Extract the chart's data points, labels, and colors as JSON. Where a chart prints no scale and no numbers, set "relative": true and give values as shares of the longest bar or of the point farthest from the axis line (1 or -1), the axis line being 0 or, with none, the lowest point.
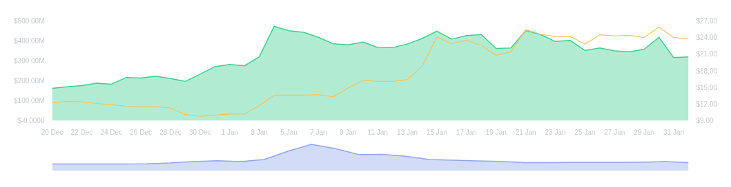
{
  "chart_data": [
    {
      "type": "area",
      "categories": [
        "20 Dec",
        null,
        "22 Dec",
        null,
        "24 Dec",
        null,
        "26 Dec",
        null,
        "28 Dec",
        null,
        "30 Dec",
        null,
        "1 Jan",
        null,
        "3 Jan",
        null,
        "5 Jan",
        null,
        "7 Jan",
        null,
        "9 Jan",
        null,
        "11 Jan",
        null,
        "13 Jan",
        null,
        "15 Jan",
        null,
        "17 Jan",
        null,
        "19 Jan",
        null,
        "21 Jan",
        null,
        "23 Jan",
        null,
        "25 Jan",
        null,
        "27 Jan",
        null,
        "29 Jan",
        null,
        "31 Jan",
        null
      ],
      "series": [
        {
          "type": "area",
          "color": "#3dcf8e",
          "values": [
            162,
            170,
            176,
            188,
            183,
            216,
            214,
            223,
            211,
            197,
            233,
            271,
            282,
            275,
            320,
            473,
            451,
            443,
            418,
            385,
            380,
            394,
            367,
            366,
            384,
            412,
            449,
            409,
            427,
            432,
            362,
            365,
            452,
            432,
            397,
            403,
            352,
            365,
            350,
            346,
            358,
            418,
            316,
            320
          ]
        },
        {
          "type": "line",
          "axis": "y2",
          "color": "#f0c260",
          "values": [
            12.2,
            12.5,
            12.4,
            12.1,
            11.9,
            11.6,
            11.5,
            11.5,
            11.3,
            10.1,
            9.8,
            10.0,
            10.2,
            10.2,
            11.7,
            13.6,
            13.6,
            13.6,
            13.7,
            13.3,
            14.9,
            16.3,
            16.1,
            16.1,
            16.4,
            18.8,
            24.1,
            22.9,
            23.5,
            22.6,
            20.8,
            21.4,
            25.4,
            24.6,
            24.2,
            24.2,
            22.8,
            24.5,
            24.3,
            24.4,
            24.0,
            25.9,
            24.0,
            23.8
          ]
        }
      ],
      "ylim": [
        0,
        500
      ],
      "yticks": [
        {
          "value": 0,
          "label": "$-0.0000"
        },
        {
          "value": 100,
          "label": "$100.00M"
        },
        {
          "value": 200,
          "label": "$200.00M"
        },
        {
          "value": 300,
          "label": "$300.00M"
        },
        {
          "value": 400,
          "label": "$400.00M"
        },
        {
          "value": 500,
          "label": "$500.00M"
        }
      ],
      "y2lim": [
        9,
        27
      ],
      "y2ticks": [
        {
          "value": 9,
          "label": "$9.00"
        },
        {
          "value": 12,
          "label": "$12.00"
        },
        {
          "value": 15,
          "label": "$15.00"
        },
        {
          "value": 18,
          "label": "$18.00"
        },
        {
          "value": 21,
          "label": "$21.00"
        },
        {
          "value": 24,
          "label": "$24.00"
        },
        {
          "value": 27,
          "label": "$27.00"
        }
      ],
      "grid": false
    },
    {
      "type": "area",
      "relative": true,
      "color": "#8fa6ea",
      "categories": [
        null,
        null,
        null,
        null,
        null,
        null,
        null,
        null,
        null,
        null,
        null,
        null,
        null,
        null,
        null,
        null,
        null,
        null,
        null,
        null,
        null,
        null,
        null,
        null,
        null,
        null,
        null,
        null
      ],
      "values": [
        0,
        0,
        0,
        0,
        0.01,
        0.05,
        0.12,
        0.17,
        0.12,
        0.23,
        0.65,
        1,
        0.79,
        0.48,
        0.49,
        0.39,
        0.23,
        0.19,
        0.16,
        0.13,
        0.07,
        0.07,
        0.08,
        0.08,
        0.08,
        0.09,
        0.12,
        0.07
      ]
    }
  ]
}
